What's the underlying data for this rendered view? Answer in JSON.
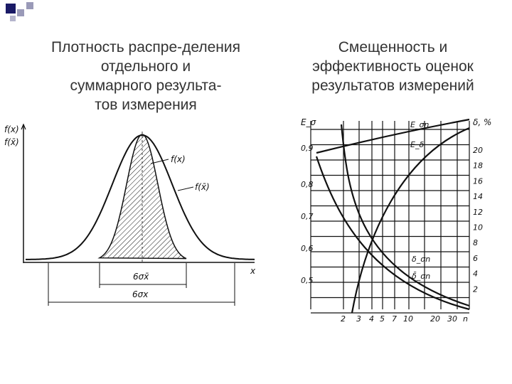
{
  "slide": {
    "left_title_lines": [
      "Плотность распре-деления",
      "отдельного и",
      "суммарного результа-",
      "тов измерения"
    ],
    "right_title_lines": [
      "Смещенность и",
      "эффективность оценок",
      "результатов измерений"
    ]
  },
  "left_figure": {
    "y_labels": [
      "f(x)",
      "f(x̄)"
    ],
    "curve_labels": [
      "f(x)",
      "f(x̄)"
    ],
    "x_axis_label": "x",
    "dimension_labels": [
      "6σx̄",
      "6σx"
    ]
  },
  "right_figure": {
    "left_axis_title": "E_σ",
    "right_axis_title": "δ, %",
    "left_ticks": [
      "0,9",
      "0,8",
      "0,7",
      "0,6",
      "0,5"
    ],
    "right_ticks": [
      "20",
      "18",
      "16",
      "14",
      "12",
      "10",
      "8",
      "6",
      "4",
      "2"
    ],
    "bottom_ticks": [
      "2",
      "3",
      "4",
      "5",
      "7",
      "10",
      "20",
      "30",
      "n"
    ],
    "curve_labels": [
      "E_σn",
      "E_δ",
      "δ_σn",
      "δ̄_σn"
    ]
  },
  "colors": {
    "accent": "#1a1a66",
    "line": "#111111"
  }
}
